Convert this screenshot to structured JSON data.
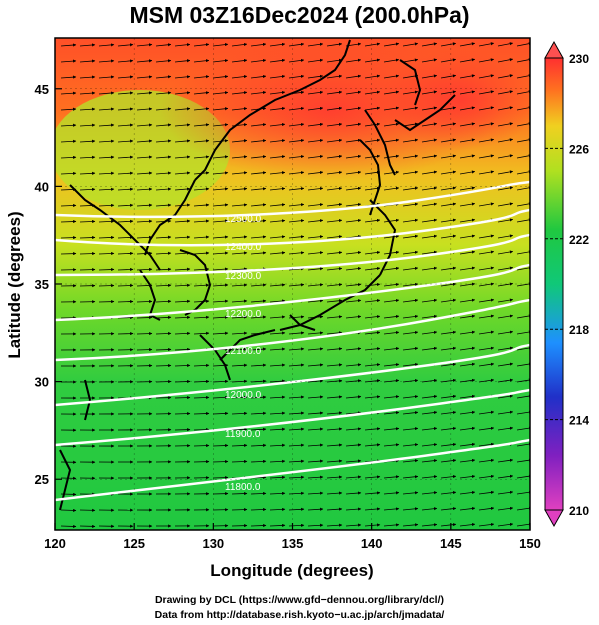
{
  "title": "MSM 03Z16Dec2024 (200.0hPa)",
  "map": {
    "x_axis": {
      "label": "Longitude (degrees)",
      "range": [
        120,
        150
      ],
      "ticks": [
        "120",
        "125",
        "130",
        "135",
        "140",
        "145",
        "150"
      ]
    },
    "y_axis": {
      "label": "Latitude  (degrees)",
      "range": [
        22.4,
        47.6
      ],
      "ticks": [
        "25",
        "30",
        "35",
        "40",
        "45"
      ]
    },
    "field": "temperature",
    "wind_vectors": true,
    "contours": {
      "color": "#ffffff",
      "labels": [
        "12500.0",
        "12400.0",
        "12300.0",
        "12200.0",
        "12100.0",
        "12000.0",
        "11900.0",
        "11800.0"
      ]
    }
  },
  "colorbar": {
    "ticks": [
      "230",
      "226",
      "222",
      "218",
      "214",
      "210"
    ],
    "range": [
      210,
      230
    ],
    "colors": [
      "#e040c0",
      "#2020c0",
      "#1e90ff",
      "#20d090",
      "#20c840",
      "#90e020",
      "#e0e020",
      "#ff8020",
      "#ff3030"
    ]
  },
  "credits": {
    "line1": "Drawing by DCL (https://www.gfd−dennou.org/library/dcl/)",
    "line2": "Data from http://database.rish.kyoto−u.ac.jp/arch/jmadata/"
  }
}
